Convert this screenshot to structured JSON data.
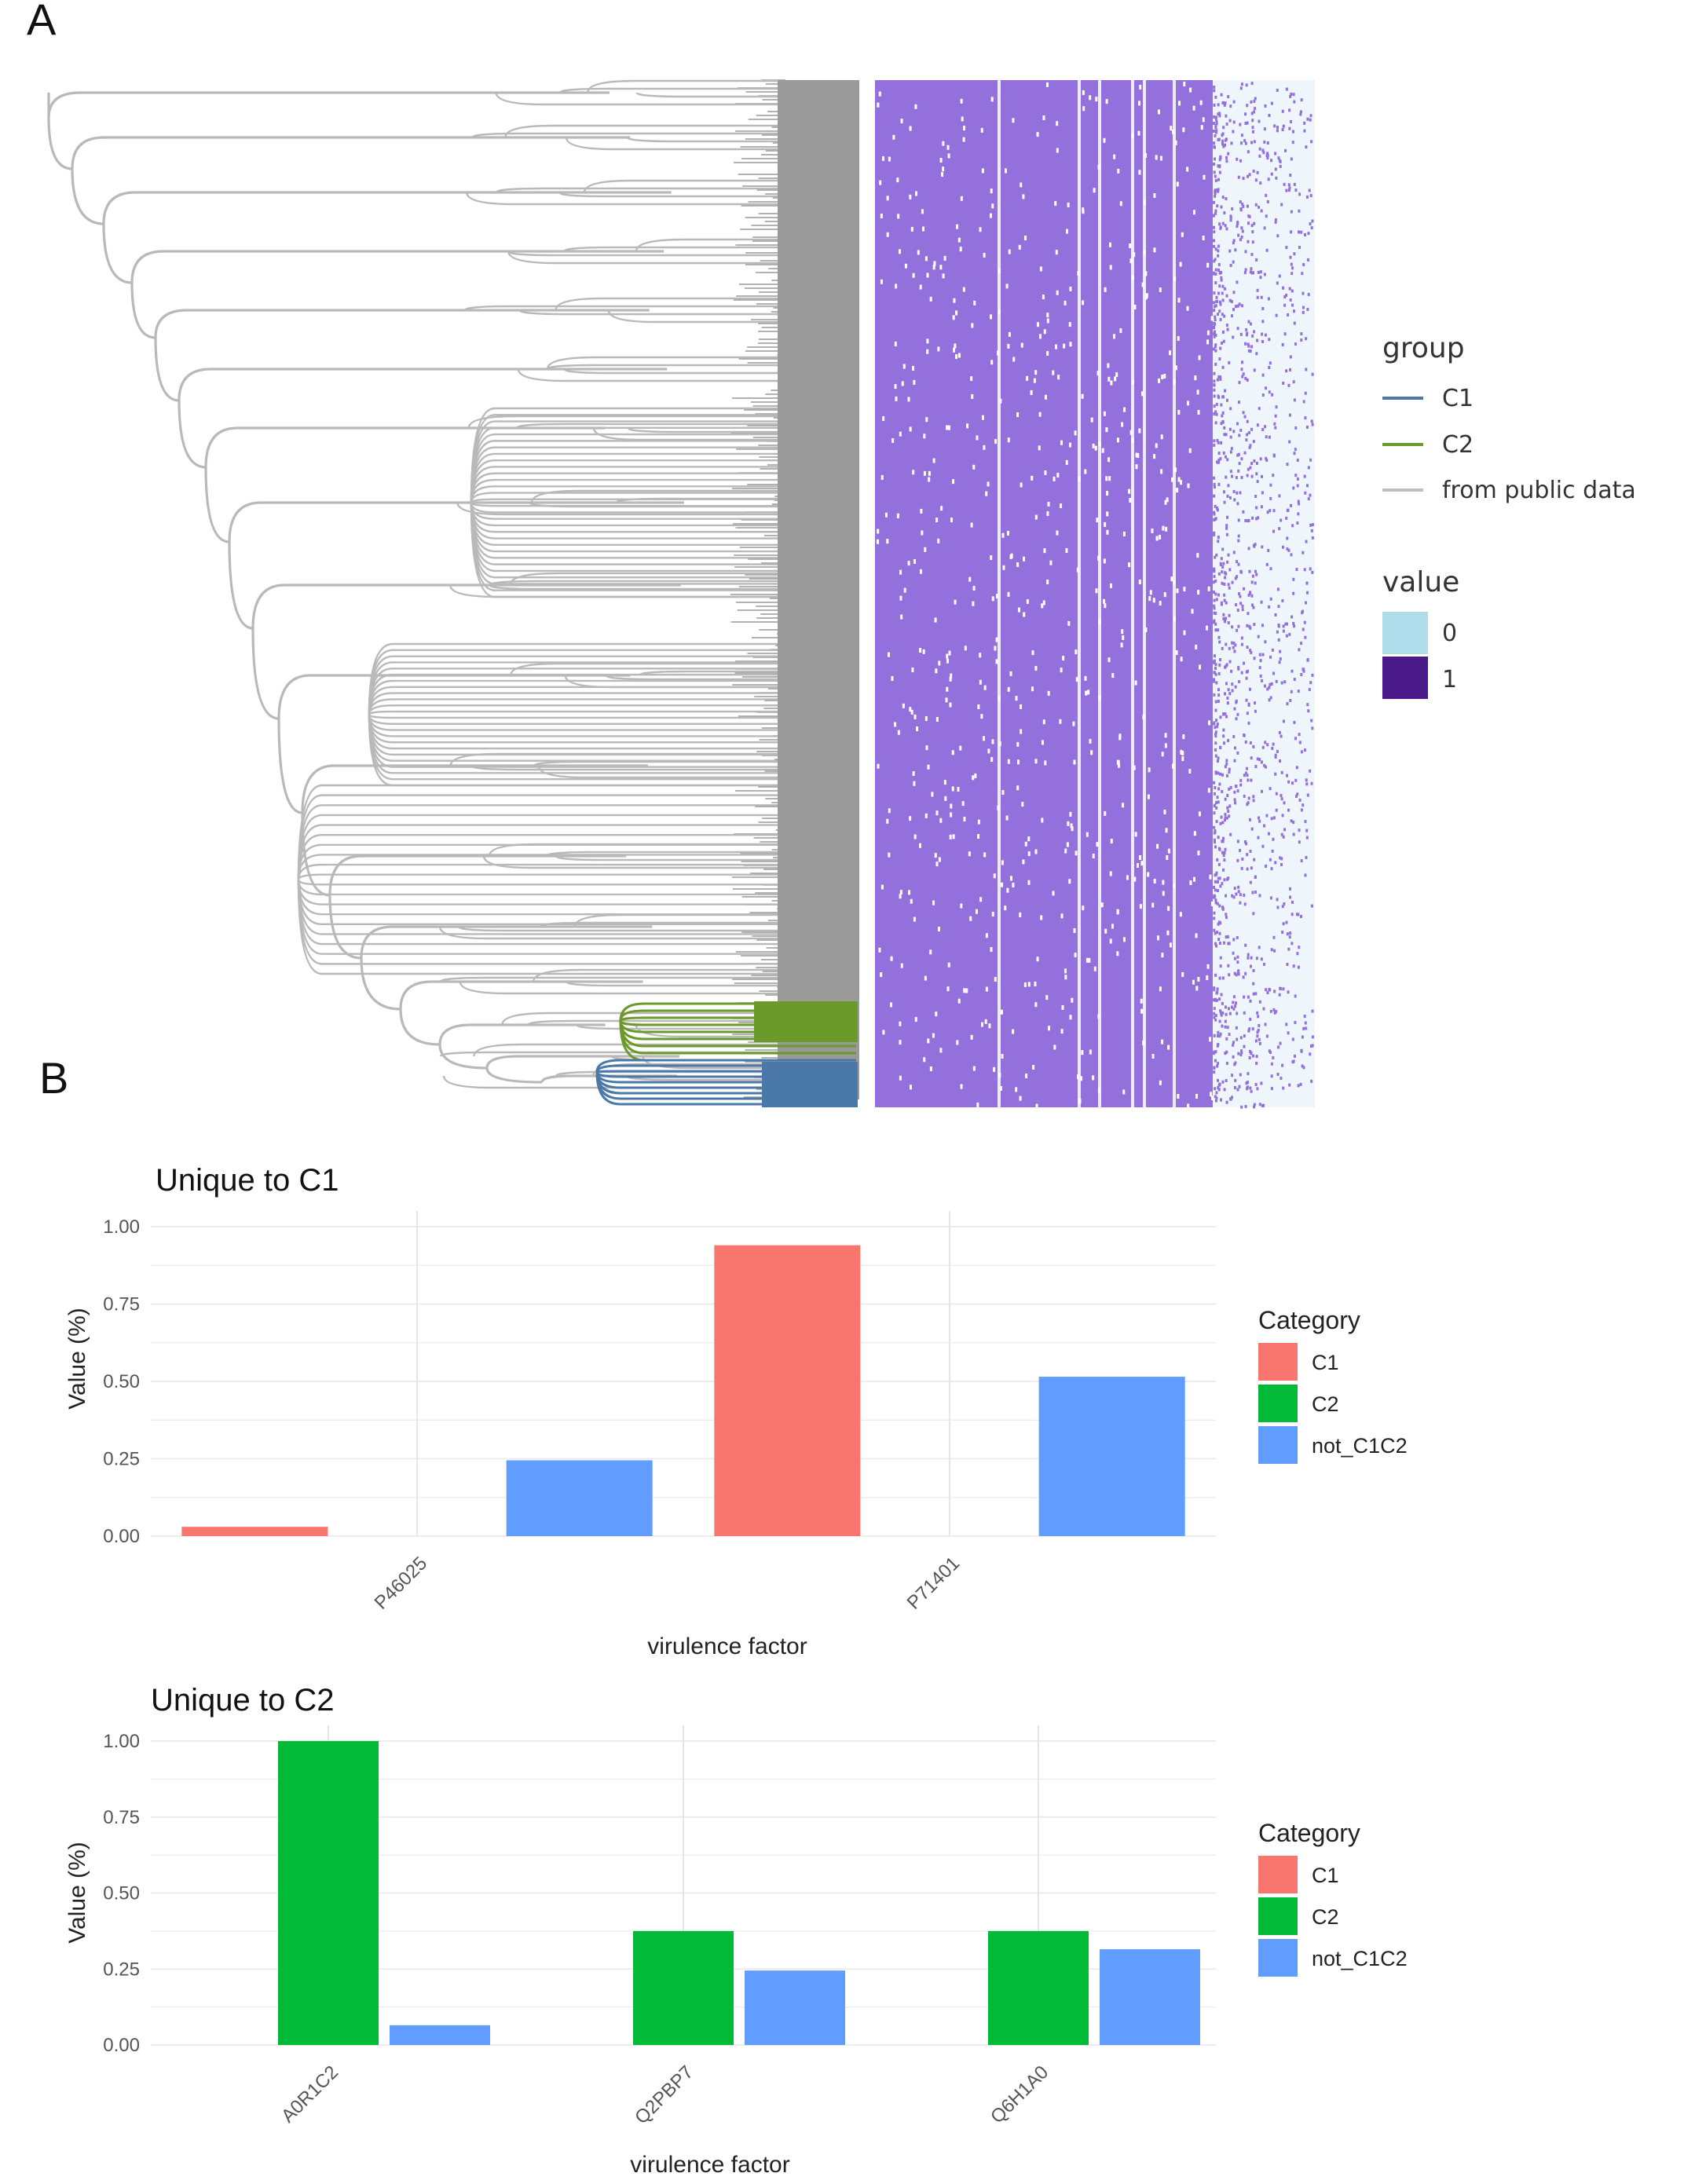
{
  "panel_a": {
    "letter": "A",
    "legend_group": {
      "title": "group",
      "items": [
        {
          "label": "C1",
          "color": "#4a78a8"
        },
        {
          "label": "C2",
          "color": "#6b9a2a"
        },
        {
          "label": "from public data",
          "color": "#bdbdbd"
        }
      ]
    },
    "legend_value": {
      "title": "value",
      "items": [
        {
          "label": "0",
          "color": "#aedcea"
        },
        {
          "label": "1",
          "color": "#4b1a8a"
        }
      ]
    },
    "heatmap_colors": {
      "present": "#9370db",
      "absent": "#eef6fb"
    }
  },
  "panel_b": {
    "letter": "B"
  },
  "chart_data": [
    {
      "type": "bar",
      "title": "Unique to C1",
      "xlabel": "virulence factor",
      "ylabel": "Value (%)",
      "ylim": [
        0,
        1
      ],
      "yticks": [
        "0.00",
        "0.25",
        "0.50",
        "0.75",
        "1.00"
      ],
      "categories": [
        "P46025",
        "P71401"
      ],
      "legend": {
        "title": "Category",
        "placement": "right"
      },
      "series": [
        {
          "name": "C1",
          "color": "#f8766d",
          "values": [
            0.03,
            0.94
          ]
        },
        {
          "name": "C2",
          "color": "#00ba38",
          "values": [
            0,
            0
          ]
        },
        {
          "name": "not_C1C2",
          "color": "#619cff",
          "values": [
            0.245,
            0.515
          ]
        }
      ]
    },
    {
      "type": "bar",
      "title": "Unique to C2",
      "xlabel": "virulence factor",
      "ylabel": "Value (%)",
      "ylim": [
        0,
        1
      ],
      "yticks": [
        "0.00",
        "0.25",
        "0.50",
        "0.75",
        "1.00"
      ],
      "categories": [
        "A0R1C2",
        "Q2PBP7",
        "Q6H1A0"
      ],
      "legend": {
        "title": "Category",
        "placement": "right"
      },
      "series": [
        {
          "name": "C1",
          "color": "#f8766d",
          "values": [
            0,
            0,
            0
          ]
        },
        {
          "name": "C2",
          "color": "#00ba38",
          "values": [
            1.0,
            0.375,
            0.375
          ]
        },
        {
          "name": "not_C1C2",
          "color": "#619cff",
          "values": [
            0.065,
            0.245,
            0.315
          ]
        }
      ]
    }
  ]
}
